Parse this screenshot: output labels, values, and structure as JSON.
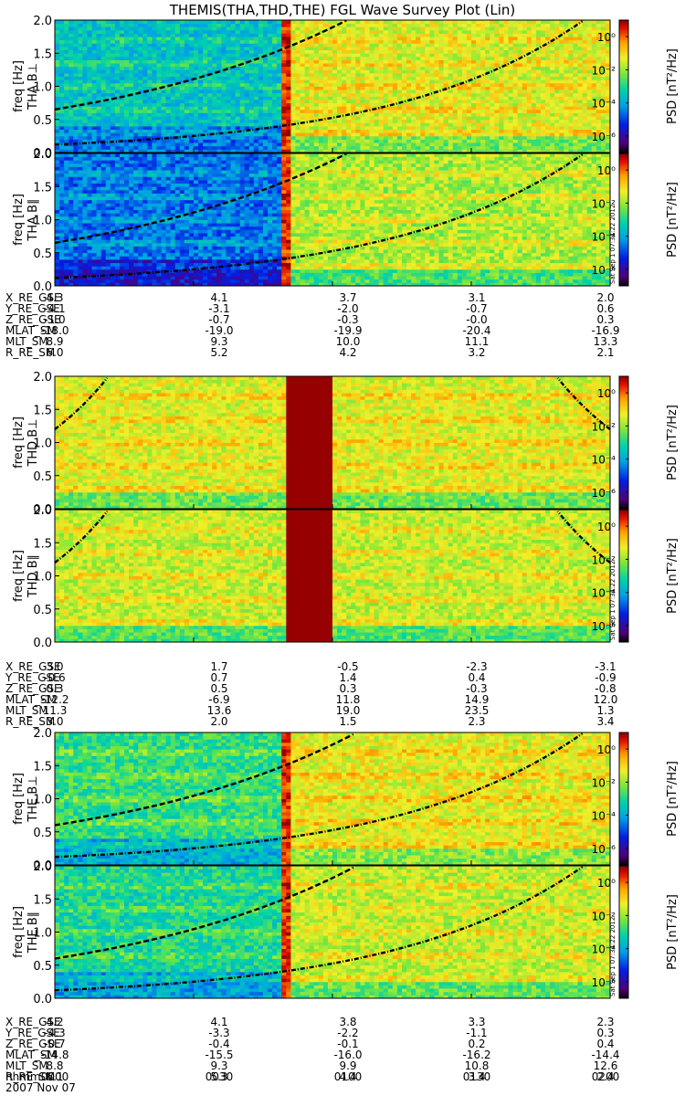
{
  "title": "THEMIS(THA,THD,THE) FGL Wave Survey Plot (Lin)",
  "colorbar": {
    "label": "PSD [nT²/Hz]",
    "ticks": [
      "10⁰",
      "10⁻²",
      "10⁻⁴",
      "10⁻⁶"
    ]
  },
  "ylabel_freq": "freq [Hz]",
  "stamp": "Sat Sep 1 07:34:22 2012",
  "time_labels": {
    "row_label": "hhmm",
    "ticks": [
      "0000",
      "0030",
      "0100",
      "0130",
      "0200"
    ],
    "date": "2007 Nov 07"
  },
  "groups": [
    {
      "panels": [
        "THA B⊥",
        "THA B∥"
      ],
      "ephem": [
        {
          "name": "X_RE_GSE",
          "values": [
            "4.3",
            "4.1",
            "3.7",
            "3.1",
            "2.0"
          ]
        },
        {
          "name": "Y_RE_GSE",
          "values": [
            "-4.1",
            "-3.1",
            "-2.0",
            "-0.7",
            "0.6"
          ]
        },
        {
          "name": "Z_RE_GSE",
          "values": [
            "-1.0",
            "-0.7",
            "-0.3",
            "-0.0",
            "0.3"
          ]
        },
        {
          "name": "MLAT_SM",
          "values": [
            "-18.0",
            "-19.0",
            "-19.9",
            "-20.4",
            "-16.9"
          ]
        },
        {
          "name": "MLT_SM",
          "values": [
            "8.9",
            "9.3",
            "10.0",
            "11.1",
            "13.3"
          ]
        },
        {
          "name": "R_RE_SM",
          "values": [
            "6.0",
            "5.2",
            "4.2",
            "3.2",
            "2.1"
          ]
        }
      ]
    },
    {
      "panels": [
        "THD B⊥",
        "THD B∥"
      ],
      "ephem": [
        {
          "name": "X_RE_GSE",
          "values": [
            "3.0",
            "1.7",
            "-0.5",
            "-2.3",
            "-3.1"
          ]
        },
        {
          "name": "Y_RE_GSE",
          "values": [
            "-0.6",
            "0.7",
            "1.4",
            "0.4",
            "-0.9"
          ]
        },
        {
          "name": "Z_RE_GSE",
          "values": [
            "0.3",
            "0.5",
            "0.3",
            "-0.3",
            "-0.8"
          ]
        },
        {
          "name": "MLAT_SM",
          "values": [
            "-12.2",
            "-6.9",
            "11.8",
            "14.9",
            "12.0"
          ]
        },
        {
          "name": "MLT_SM",
          "values": [
            "11.3",
            "13.6",
            "19.0",
            "23.5",
            "1.3"
          ]
        },
        {
          "name": "R_RE_SM",
          "values": [
            "3.0",
            "2.0",
            "1.5",
            "2.3",
            "3.4"
          ]
        }
      ]
    },
    {
      "panels": [
        "THE B⊥",
        "THE B∥"
      ],
      "ephem": [
        {
          "name": "X_RE_GSE",
          "values": [
            "4.2",
            "4.1",
            "3.8",
            "3.3",
            "2.3"
          ]
        },
        {
          "name": "Y_RE_GSE",
          "values": [
            "-4.3",
            "-3.3",
            "-2.2",
            "-1.1",
            "0.3"
          ]
        },
        {
          "name": "Z_RE_GSE",
          "values": [
            "-0.7",
            "-0.4",
            "-0.1",
            "0.2",
            "0.4"
          ]
        },
        {
          "name": "MLAT_SM",
          "values": [
            "-14.8",
            "-15.5",
            "-16.0",
            "-16.2",
            "-14.4"
          ]
        },
        {
          "name": "MLT_SM",
          "values": [
            "8.8",
            "9.3",
            "9.9",
            "10.8",
            "12.6"
          ]
        },
        {
          "name": "R_RE_SM",
          "values": [
            "6.1",
            "5.3",
            "4.4",
            "3.4",
            "2.4"
          ]
        }
      ]
    }
  ],
  "chart_data": {
    "type": "heatmap",
    "title": "THEMIS(THA,THD,THE) FGL Wave Survey Plot (Lin)",
    "ylabel": "freq [Hz]",
    "ylim": [
      0,
      2.0
    ],
    "yticks": [
      "0.0",
      "0.5",
      "1.0",
      "1.5",
      "2.0"
    ],
    "xticks": [
      "0000",
      "0030",
      "0100",
      "0130",
      "0200"
    ],
    "colorbar_label": "PSD [nT²/Hz]",
    "colorbar_range_log10": [
      -7,
      1
    ],
    "panels": [
      {
        "name": "THA B⊥",
        "left_log10": -3.5,
        "right_log10": -1.4,
        "split_time": 50,
        "dashed_curve": [
          0.65,
          3.0
        ],
        "dashdot_curve": [
          0.12,
          2.0
        ]
      },
      {
        "name": "THA B∥",
        "left_log10": -4.5,
        "right_log10": -1.8,
        "split_time": 50,
        "dashed_curve": [
          0.65,
          3.0
        ],
        "dashdot_curve": [
          0.12,
          2.0
        ]
      },
      {
        "name": "THD B⊥",
        "background_log10": -1.4,
        "saturated_interval": [
          50,
          60
        ]
      },
      {
        "name": "THD B∥",
        "background_log10": -1.6,
        "saturated_interval": [
          50,
          60
        ]
      },
      {
        "name": "THE B⊥",
        "left_log10": -2.8,
        "right_log10": -1.3,
        "split_time": 50,
        "dashed_curve": [
          0.6,
          3.0
        ],
        "dashdot_curve": [
          0.12,
          2.0
        ]
      },
      {
        "name": "THE B∥",
        "left_log10": -3.0,
        "right_log10": -1.6,
        "split_time": 50,
        "dashed_curve": [
          0.6,
          3.0
        ],
        "dashdot_curve": [
          0.12,
          2.0
        ]
      }
    ]
  }
}
